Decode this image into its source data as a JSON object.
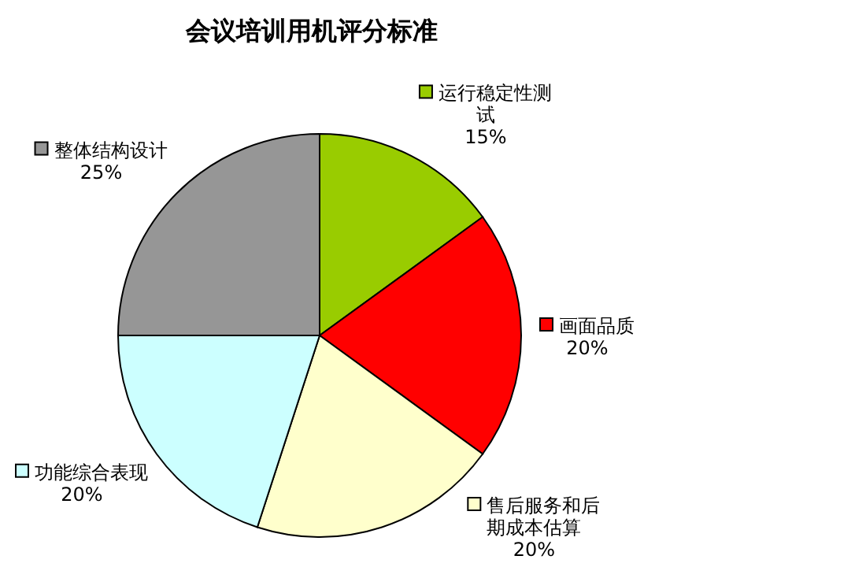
{
  "chart_data": {
    "type": "pie",
    "title": "会议培训用机评分标准",
    "categories": [
      "运行稳定性测试",
      "画面品质",
      "售后服务和后期成本估算",
      "功能综合表现",
      "整体结构设计"
    ],
    "values": [
      15,
      20,
      20,
      20,
      25
    ],
    "value_labels": [
      "15%",
      "20%",
      "20%",
      "20%",
      "25%"
    ],
    "colors": [
      "#99cc00",
      "#ff0000",
      "#ffffcc",
      "#ccffff",
      "#969696"
    ],
    "legend": "right"
  }
}
